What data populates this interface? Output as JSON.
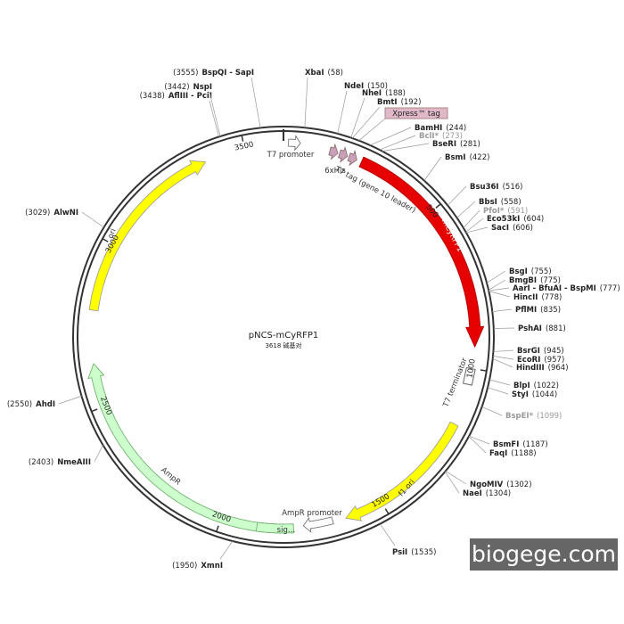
{
  "map": {
    "title": "pNCS-mCyRFP1",
    "size": "3618 碱基对",
    "sites": [
      {
        "name": "XbaI",
        "pos": "(58)"
      },
      {
        "name": "NdeI",
        "pos": "(150)"
      },
      {
        "name": "NheI",
        "pos": "(188)"
      },
      {
        "name": "BmtI",
        "pos": "(192)"
      },
      {
        "name": "BamHI",
        "pos": "(244)"
      },
      {
        "name": "BclI*",
        "pos": "(273)"
      },
      {
        "name": "BseRI",
        "pos": "(281)"
      },
      {
        "name": "BsmI",
        "pos": "(422)"
      },
      {
        "name": "Bsu36I",
        "pos": "(516)"
      },
      {
        "name": "BbsI",
        "pos": "(558)"
      },
      {
        "name": "PfoI*",
        "pos": "(591)"
      },
      {
        "name": "Eco53kI",
        "pos": "(604)"
      },
      {
        "name": "SacI",
        "pos": "(606)"
      },
      {
        "name": "BsgI",
        "pos": "(755)"
      },
      {
        "name": "BmgBI",
        "pos": "(775)"
      },
      {
        "name": "AarI - BfuAI - BspMI",
        "pos": "(777)"
      },
      {
        "name": "HincII",
        "pos": "(778)"
      },
      {
        "name": "PflMI",
        "pos": "(835)"
      },
      {
        "name": "PshAI",
        "pos": "(881)"
      },
      {
        "name": "BsrGI",
        "pos": "(945)"
      },
      {
        "name": "EcoRI",
        "pos": "(957)"
      },
      {
        "name": "HindIII",
        "pos": "(964)"
      },
      {
        "name": "BlpI",
        "pos": "(1022)"
      },
      {
        "name": "StyI",
        "pos": "(1044)"
      },
      {
        "name": "BspEI*",
        "pos": "(1099)"
      },
      {
        "name": "BsmFI",
        "pos": "(1187)"
      },
      {
        "name": "FaqI",
        "pos": "(1188)"
      },
      {
        "name": "NgoMIV",
        "pos": "(1302)"
      },
      {
        "name": "NaeI",
        "pos": "(1304)"
      },
      {
        "name": "PsiI",
        "pos": "(1535)"
      },
      {
        "name": "XmnI",
        "pos": "(1950)"
      },
      {
        "name": "NmeAIII",
        "pos": "(2403)"
      },
      {
        "name": "AhdI",
        "pos": "(2550)"
      },
      {
        "name": "AlwNI",
        "pos": "(3029)"
      },
      {
        "name": "AflIII - PciI",
        "pos": "(3438)"
      },
      {
        "name": "NspI",
        "pos": "(3442)"
      },
      {
        "name": "BspQI - SapI",
        "pos": "(3555)"
      }
    ],
    "features": [
      "Xpress™ tag",
      "T7 promoter",
      "6xHis",
      "T7 tag (gene 10 leader)",
      "mCyRFP1",
      "T7 terminator",
      "f1 ori",
      "AmpR promoter",
      "AmpR",
      "sig…",
      "ori"
    ],
    "ticks": [
      500,
      1000,
      1500,
      2000,
      2500,
      3000,
      3500
    ],
    "watermark": "biogege.com"
  }
}
